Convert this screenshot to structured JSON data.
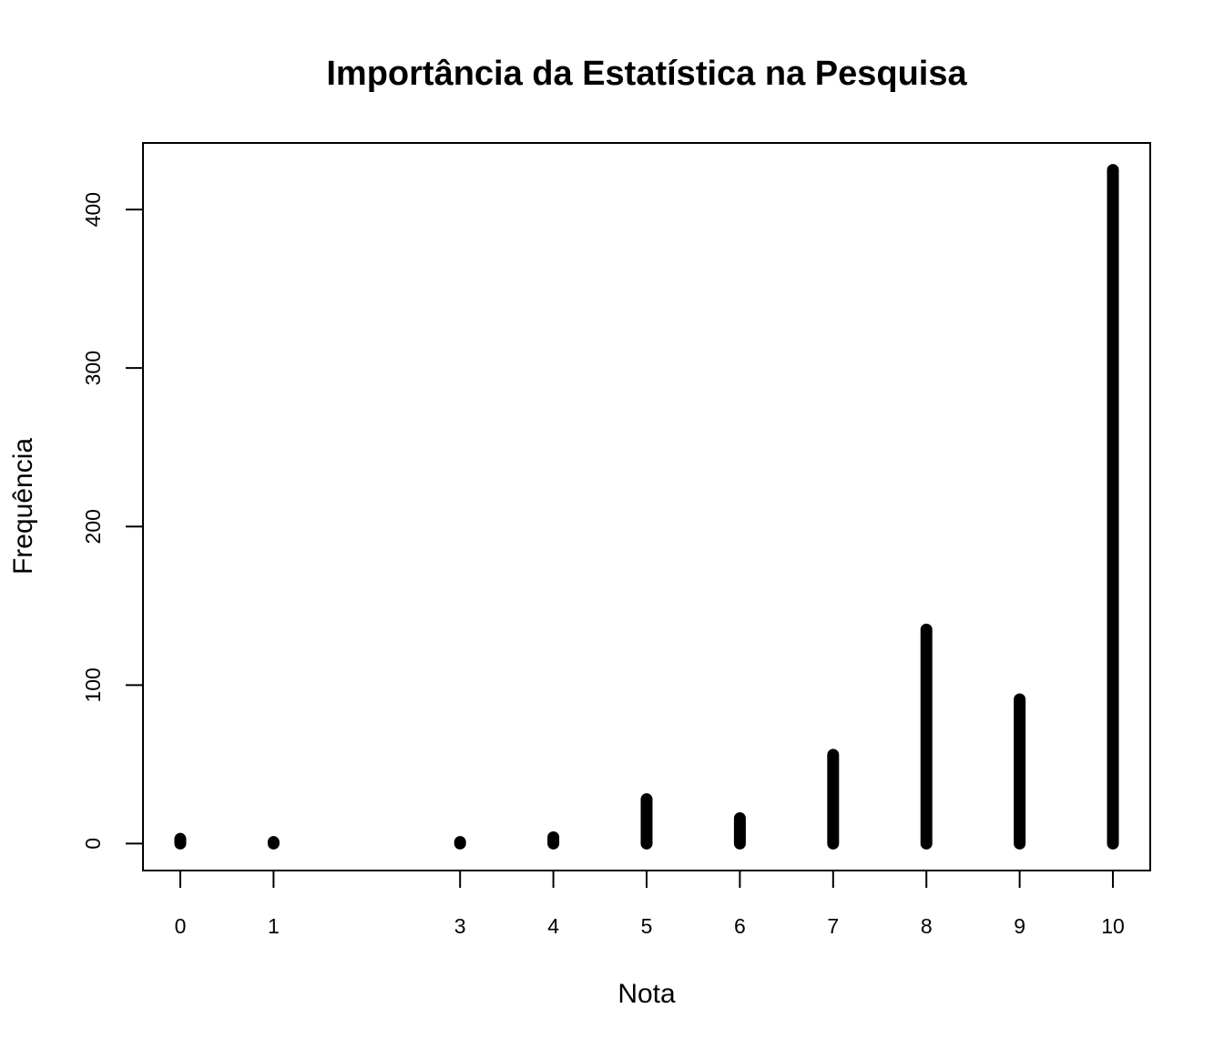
{
  "chart_data": {
    "type": "bar",
    "title": "Importância da Estatística na Pesquisa",
    "xlabel": "Nota",
    "ylabel": "Frequência",
    "categories": [
      "0",
      "1",
      "3",
      "4",
      "5",
      "6",
      "7",
      "8",
      "9",
      "10"
    ],
    "x": [
      0,
      1,
      3,
      4,
      5,
      6,
      7,
      8,
      9,
      10
    ],
    "values": [
      3,
      1,
      1,
      4,
      28,
      16,
      56,
      135,
      91,
      425
    ],
    "xlim": [
      -0.4,
      10.4
    ],
    "ylim": [
      -17,
      442
    ],
    "yticks": [
      0,
      100,
      200,
      300,
      400
    ],
    "grid": false,
    "legend": "none",
    "mark_color": "#000000"
  }
}
